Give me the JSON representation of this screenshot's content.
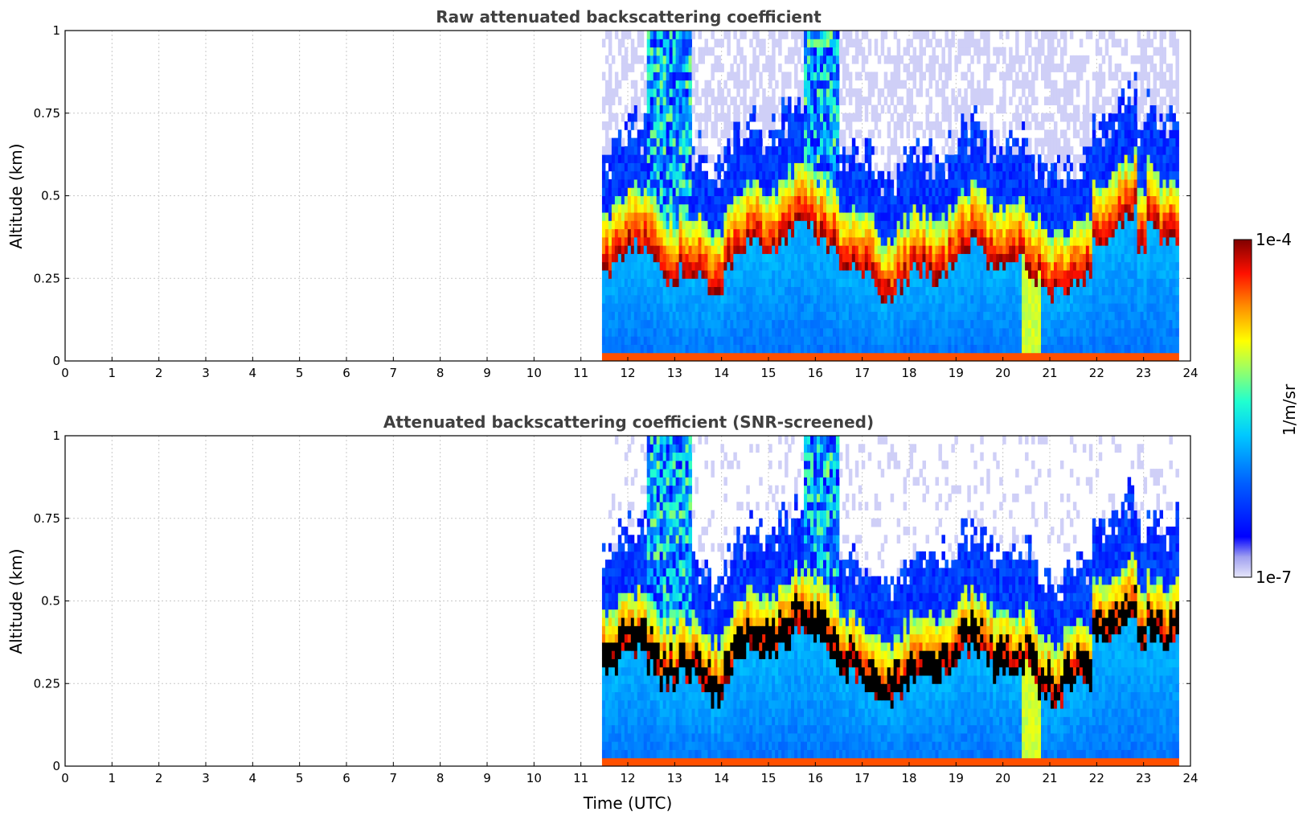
{
  "chart_data": [
    {
      "type": "heatmap",
      "title": "Raw attenuated backscattering coefficient",
      "xlabel": "",
      "ylabel": "Altitude (km)",
      "xlim": [
        0,
        24
      ],
      "ylim": [
        0,
        1
      ],
      "xticks": [
        "0",
        "1",
        "2",
        "3",
        "4",
        "5",
        "6",
        "7",
        "8",
        "9",
        "10",
        "11",
        "12",
        "13",
        "14",
        "15",
        "16",
        "17",
        "18",
        "19",
        "20",
        "21",
        "22",
        "23",
        "24"
      ],
      "yticks": [
        "0",
        "0.25",
        "0.5",
        "0.75",
        "1"
      ],
      "grid": true,
      "data_start_hour": 11.45,
      "data_end_hour": 23.75,
      "description_levels": "log10 backscatter 1e-7..1e-4 1/m/sr",
      "screened": false
    },
    {
      "type": "heatmap",
      "title": "Attenuated backscattering coefficient (SNR-screened)",
      "xlabel": "Time (UTC)",
      "ylabel": "Altitude (km)",
      "xlim": [
        0,
        24
      ],
      "ylim": [
        0,
        1
      ],
      "xticks": [
        "0",
        "1",
        "2",
        "3",
        "4",
        "5",
        "6",
        "7",
        "8",
        "9",
        "10",
        "11",
        "12",
        "13",
        "14",
        "15",
        "16",
        "17",
        "18",
        "19",
        "20",
        "21",
        "22",
        "23",
        "24"
      ],
      "yticks": [
        "0",
        "0.25",
        "0.5",
        "0.75",
        "1"
      ],
      "grid": true,
      "data_start_hour": 11.45,
      "data_end_hour": 23.75,
      "screened": true
    }
  ],
  "colorbar": {
    "max_label": "1e-4",
    "min_label": "1e-7",
    "unit_label": "1/m/sr",
    "scale": "log",
    "range": [
      1e-07,
      0.0001
    ]
  }
}
